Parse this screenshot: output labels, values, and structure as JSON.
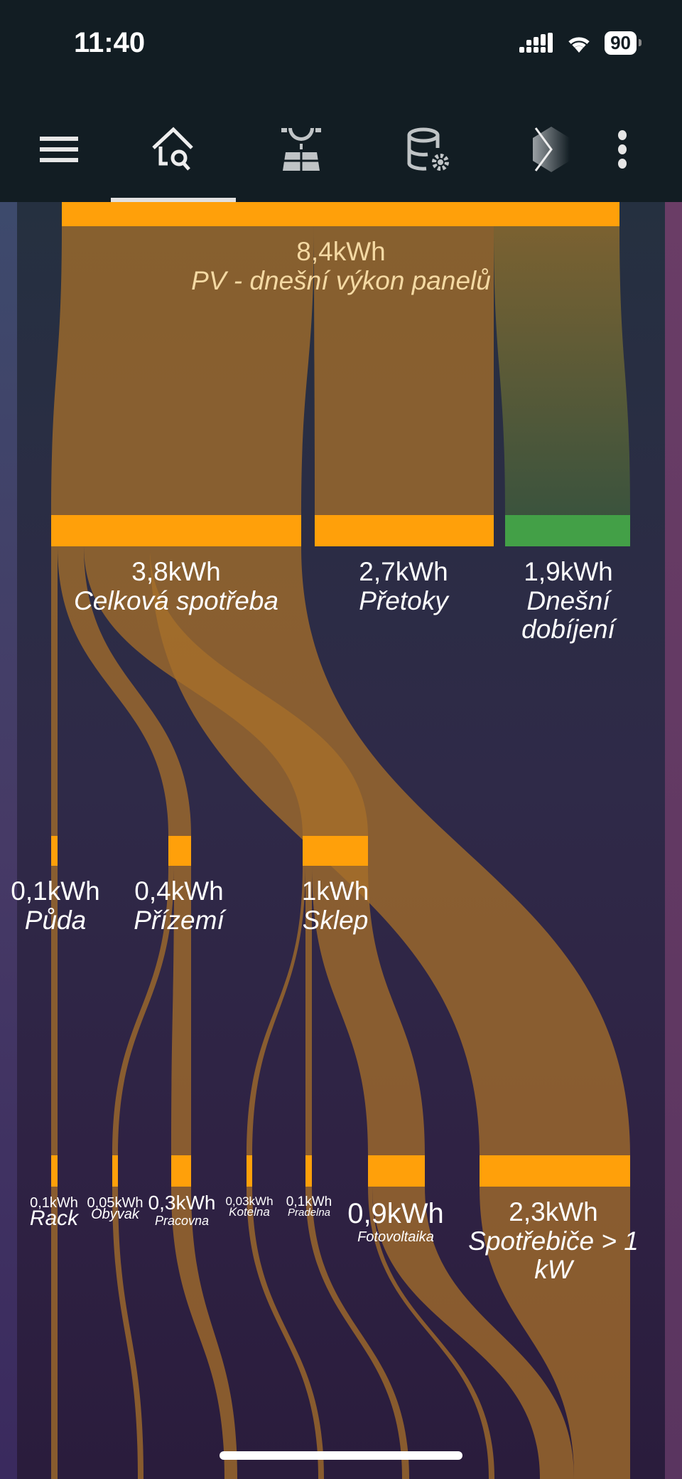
{
  "status_bar": {
    "time": "11:40",
    "battery": "90",
    "signal-icon": "signal-icon",
    "wifi-icon": "wifi-icon"
  },
  "nav": {
    "items": [
      {
        "icon": "menu-icon"
      },
      {
        "icon": "home-search-icon",
        "active": true
      },
      {
        "icon": "solar-panel-icon"
      },
      {
        "icon": "database-settings-icon"
      },
      {
        "icon": "addon-icon"
      },
      {
        "icon": "more-vertical-icon"
      }
    ]
  },
  "colors": {
    "node": "#ffa00a",
    "node_green": "#43a047",
    "flow": "#a8702a"
  },
  "sankey": {
    "nodes": {
      "pv": {
        "value": "8,4kWh",
        "name": "PV - dnešní výkon panelů"
      },
      "celkova": {
        "value": "3,8kWh",
        "name": "Celková spotřeba"
      },
      "pretoky": {
        "value": "2,7kWh",
        "name": "Přetoky"
      },
      "dobijeni": {
        "value": "1,9kWh",
        "name": "Dnešní",
        "name2": "dobíjení"
      },
      "puda": {
        "value": "0,1kWh",
        "name": "Půda"
      },
      "prizemi": {
        "value": "0,4kWh",
        "name": "Přízemí"
      },
      "sklep": {
        "value": "1kWh",
        "name": "Sklep"
      },
      "rack": {
        "value": "0,1kWh",
        "name": "Rack"
      },
      "obyvak": {
        "value": "0,05kWh",
        "name": "Obyvak"
      },
      "pracovna": {
        "value": "0,3kWh",
        "name": "Pracovna"
      },
      "kotelna": {
        "value": "0,03kWh",
        "name": "Kotelna"
      },
      "pradelna": {
        "value": "0,1kWh",
        "name": "Pradelna"
      },
      "fotovoltaika": {
        "value": "0,9kWh",
        "name": "Fotovoltaika"
      },
      "spotrebice": {
        "value": "2,3kWh",
        "name": "Spotřebiče > 1",
        "name2": "kW"
      }
    }
  }
}
